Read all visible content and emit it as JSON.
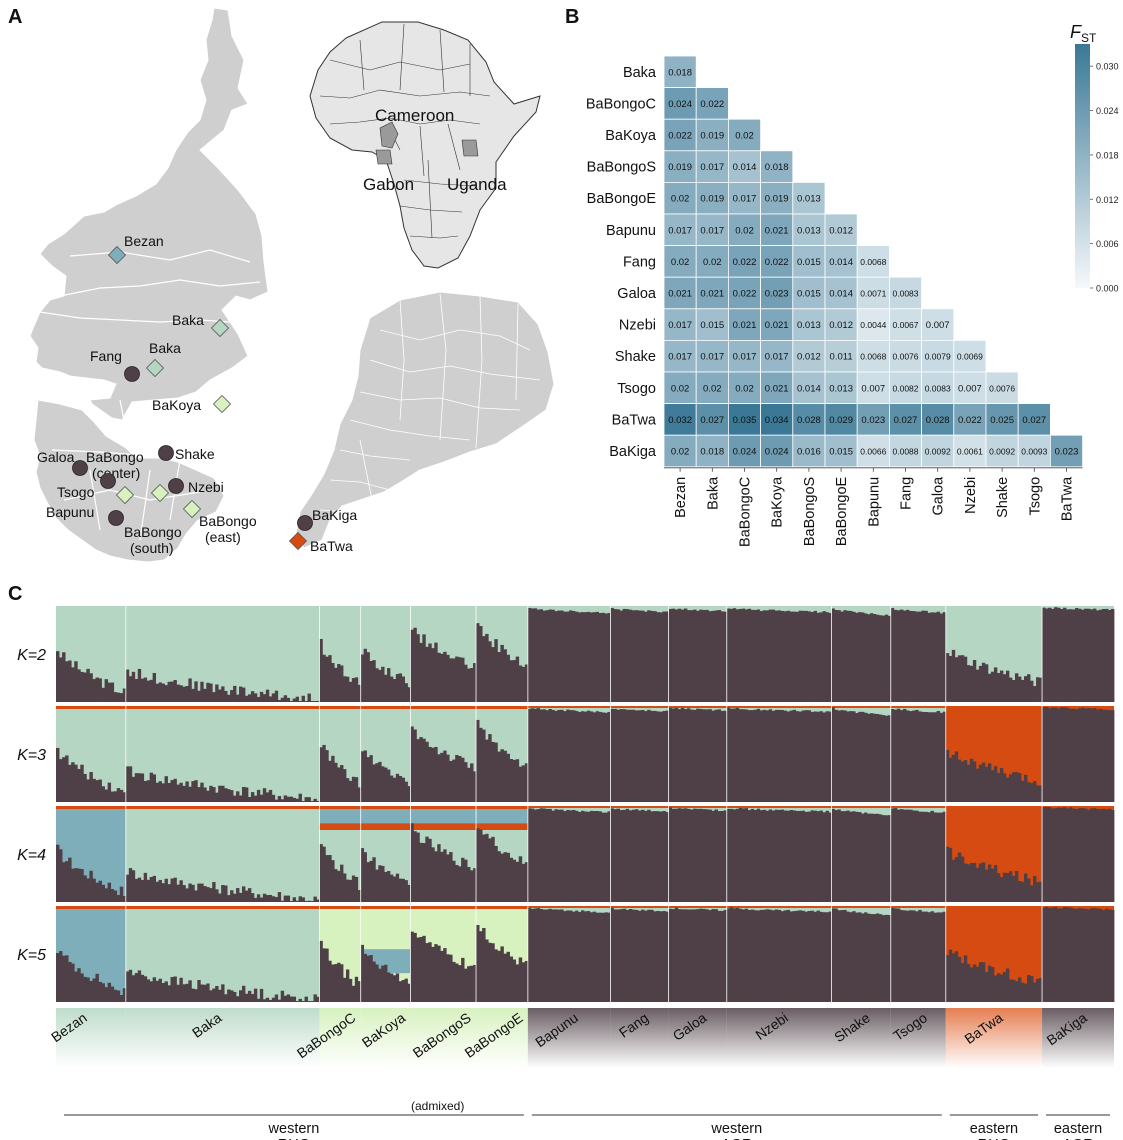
{
  "panels": {
    "a": "A",
    "b": "B",
    "c": "C"
  },
  "map": {
    "inset_labels": [
      "Cameroon",
      "Gabon",
      "Uganda"
    ],
    "sites": [
      {
        "name": "Bezan",
        "group": "western RHG",
        "shape": "diamond",
        "color": "#7faebb"
      },
      {
        "name": "Baka",
        "group": "western RHG",
        "shape": "diamond",
        "color": "#b4d6c2"
      },
      {
        "name": "Baka",
        "group": "western RHG",
        "shape": "diamond",
        "color": "#b4d6c2"
      },
      {
        "name": "Fang",
        "group": "western AGR",
        "shape": "circle",
        "color": "#4f4047"
      },
      {
        "name": "BaKoya",
        "group": "admixed western RHG",
        "shape": "diamond",
        "color": "#d7f1bf"
      },
      {
        "name": "BaBongo (center)",
        "group": "admixed western RHG",
        "shape": "diamond",
        "color": "#d7f1bf"
      },
      {
        "name": "Galoa",
        "group": "western AGR",
        "shape": "circle",
        "color": "#4f4047"
      },
      {
        "name": "Shake",
        "group": "western AGR",
        "shape": "circle",
        "color": "#4f4047"
      },
      {
        "name": "Tsogo",
        "group": "western AGR",
        "shape": "circle",
        "color": "#4f4047"
      },
      {
        "name": "Nzebi",
        "group": "western AGR",
        "shape": "circle",
        "color": "#4f4047"
      },
      {
        "name": "Bapunu",
        "group": "western AGR",
        "shape": "circle",
        "color": "#4f4047"
      },
      {
        "name": "BaBongo (south)",
        "group": "admixed western RHG",
        "shape": "diamond",
        "color": "#d7f1bf"
      },
      {
        "name": "BaBongo (east)",
        "group": "admixed western RHG",
        "shape": "diamond",
        "color": "#d7f1bf"
      },
      {
        "name": "BaKiga",
        "group": "eastern AGR",
        "shape": "circle",
        "color": "#4f4047"
      },
      {
        "name": "BaTwa",
        "group": "eastern RHG",
        "shape": "diamond",
        "color": "#d64b12"
      }
    ]
  },
  "chart_data": [
    {
      "type": "heatmap",
      "panel": "B",
      "title": "",
      "colorbar_label": "F",
      "colorbar_sub": "ST",
      "colorbar_ticks": [
        "0.030",
        "0.024",
        "0.018",
        "0.012",
        "0.006",
        "0.000"
      ],
      "zlim": [
        0,
        0.033
      ],
      "rows": [
        "Baka",
        "BaBongoC",
        "BaKoya",
        "BaBongoS",
        "BaBongoE",
        "Bapunu",
        "Fang",
        "Galoa",
        "Nzebi",
        "Shake",
        "Tsogo",
        "BaTwa",
        "BaKiga"
      ],
      "cols": [
        "Bezan",
        "Baka",
        "BaBongoC",
        "BaKoya",
        "BaBongoS",
        "BaBongoE",
        "Bapunu",
        "Fang",
        "Galoa",
        "Nzebi",
        "Shake",
        "Tsogo",
        "BaTwa"
      ],
      "values": [
        [
          "0.018"
        ],
        [
          "0.024",
          "0.022"
        ],
        [
          "0.022",
          "0.019",
          "0.02"
        ],
        [
          "0.019",
          "0.017",
          "0.014",
          "0.018"
        ],
        [
          "0.02",
          "0.019",
          "0.017",
          "0.019",
          "0.013"
        ],
        [
          "0.017",
          "0.017",
          "0.02",
          "0.021",
          "0.013",
          "0.012"
        ],
        [
          "0.02",
          "0.02",
          "0.022",
          "0.022",
          "0.015",
          "0.014",
          "0.0068"
        ],
        [
          "0.021",
          "0.021",
          "0.022",
          "0.023",
          "0.015",
          "0.014",
          "0.0071",
          "0.0083"
        ],
        [
          "0.017",
          "0.015",
          "0.021",
          "0.021",
          "0.013",
          "0.012",
          "0.0044",
          "0.0067",
          "0.007"
        ],
        [
          "0.017",
          "0.017",
          "0.017",
          "0.017",
          "0.012",
          "0.011",
          "0.0068",
          "0.0076",
          "0.0079",
          "0.0069"
        ],
        [
          "0.02",
          "0.02",
          "0.02",
          "0.021",
          "0.014",
          "0.013",
          "0.007",
          "0.0082",
          "0.0083",
          "0.007",
          "0.0076"
        ],
        [
          "0.032",
          "0.027",
          "0.035",
          "0.034",
          "0.028",
          "0.029",
          "0.023",
          "0.027",
          "0.028",
          "0.022",
          "0.025",
          "0.027"
        ],
        [
          "0.02",
          "0.018",
          "0.024",
          "0.024",
          "0.016",
          "0.015",
          "0.0066",
          "0.0088",
          "0.0092",
          "0.0061",
          "0.0092",
          "0.0093",
          "0.023"
        ]
      ]
    },
    {
      "type": "bar",
      "panel": "C",
      "stacked": true,
      "title": "",
      "row_labels": [
        "K=2",
        "K=3",
        "K=4",
        "K=5"
      ],
      "component_colors": [
        "#4f4047",
        "#b4d6c2",
        "#d64b12",
        "#7faebb",
        "#d7f1bf"
      ],
      "populations": [
        {
          "name": "Bezan",
          "share": 0.066
        },
        {
          "name": "Baka",
          "share": 0.183
        },
        {
          "name": "BaBongoC",
          "share": 0.039
        },
        {
          "name": "BaKoya",
          "share": 0.047
        },
        {
          "name": "BaBongoS",
          "share": 0.062
        },
        {
          "name": "BaBongoE",
          "share": 0.049
        },
        {
          "name": "Bapunu",
          "share": 0.078
        },
        {
          "name": "Fang",
          "share": 0.055
        },
        {
          "name": "Galoa",
          "share": 0.055
        },
        {
          "name": "Nzebi",
          "share": 0.099
        },
        {
          "name": "Shake",
          "share": 0.056
        },
        {
          "name": "Tsogo",
          "share": 0.052
        },
        {
          "name": "BaTwa",
          "share": 0.091
        },
        {
          "name": "BaKiga",
          "share": 0.068
        }
      ],
      "group_labels": [
        {
          "line1": "western",
          "line2": "RHG",
          "note": "(admixed)"
        },
        {
          "line1": "western",
          "line2": "AGR"
        },
        {
          "line1": "eastern",
          "line2": "RHG"
        },
        {
          "line1": "eastern",
          "line2": "AGR"
        }
      ]
    }
  ]
}
